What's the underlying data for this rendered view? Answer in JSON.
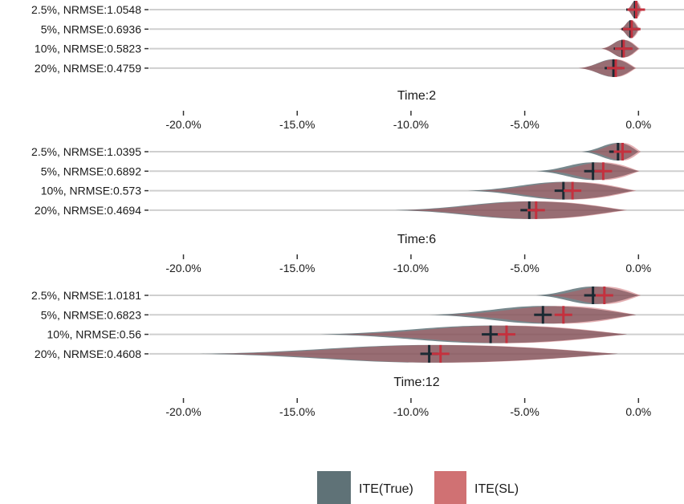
{
  "chart_data": {
    "type": "violin",
    "x_ticks": [
      "-20.0%",
      "-15.0%",
      "-10.0%",
      "-5.0%",
      "0.0%"
    ],
    "xlim": [
      -21.5,
      2.0
    ],
    "colors": {
      "true": "#4a5f66",
      "sl": "#c14e55",
      "true_marker": "#1b2a33",
      "sl_marker": "#c4313e",
      "row_line": "#cfcfcf"
    },
    "legend": [
      {
        "key": "true",
        "label": "ITE(True)",
        "color": "#5f7277"
      },
      {
        "key": "sl",
        "label": "ITE(SL)",
        "color": "#d07173"
      }
    ],
    "panels": [
      {
        "title": "",
        "rows": [
          {
            "label": "2.5%, NRMSE:1.0548",
            "true_med": -0.15,
            "sl_med": -0.1,
            "true_range": [
              -0.5,
              0.1
            ],
            "sl_range": [
              -0.55,
              0.15
            ]
          },
          {
            "label": "5%, NRMSE:0.6936",
            "true_med": -0.35,
            "sl_med": -0.3,
            "true_range": [
              -0.8,
              0.0
            ],
            "sl_range": [
              -0.85,
              0.05
            ]
          },
          {
            "label": "10%, NRMSE:0.5823",
            "true_med": -0.7,
            "sl_med": -0.65,
            "true_range": [
              -1.6,
              0.0
            ],
            "sl_range": [
              -1.65,
              0.05
            ]
          },
          {
            "label": "20%, NRMSE:0.4759",
            "true_med": -1.1,
            "sl_med": -1.0,
            "true_range": [
              -2.6,
              -0.15
            ],
            "sl_range": [
              -2.65,
              -0.1
            ]
          }
        ]
      },
      {
        "title": "Time:2",
        "rows": [
          {
            "label": "2.5%, NRMSE:1.0395",
            "true_med": -0.9,
            "sl_med": -0.7,
            "true_range": [
              -2.5,
              0.0
            ],
            "sl_range": [
              -2.2,
              0.1
            ]
          },
          {
            "label": "5%, NRMSE:0.6892",
            "true_med": -2.0,
            "sl_med": -1.55,
            "true_range": [
              -4.5,
              0.0
            ],
            "sl_range": [
              -4.0,
              0.05
            ]
          },
          {
            "label": "10%, NRMSE:0.573",
            "true_med": -3.3,
            "sl_med": -2.9,
            "true_range": [
              -7.5,
              -0.2
            ],
            "sl_range": [
              -7.0,
              -0.1
            ]
          },
          {
            "label": "20%, NRMSE:0.4694",
            "true_med": -4.8,
            "sl_med": -4.5,
            "true_range": [
              -10.7,
              -0.6
            ],
            "sl_range": [
              -10.3,
              -0.5
            ]
          }
        ]
      },
      {
        "title": "Time:6",
        "rows": [
          {
            "label": "2.5%, NRMSE:1.0181",
            "true_med": -2.0,
            "sl_med": -1.5,
            "true_range": [
              -4.5,
              0.0
            ],
            "sl_range": [
              -4.0,
              0.1
            ]
          },
          {
            "label": "5%, NRMSE:0.6823",
            "true_med": -4.2,
            "sl_med": -3.3,
            "true_range": [
              -9.2,
              -0.1
            ],
            "sl_range": [
              -8.5,
              -0.1
            ]
          },
          {
            "label": "10%, NRMSE:0.56",
            "true_med": -6.5,
            "sl_med": -5.8,
            "true_range": [
              -14.0,
              -0.5
            ],
            "sl_range": [
              -13.2,
              -0.5
            ]
          },
          {
            "label": "20%, NRMSE:0.4608",
            "true_med": -9.2,
            "sl_med": -8.7,
            "true_range": [
              -19.3,
              -0.9
            ],
            "sl_range": [
              -18.5,
              -0.9
            ]
          }
        ]
      },
      {
        "title": "Time:12",
        "rows": []
      }
    ]
  }
}
